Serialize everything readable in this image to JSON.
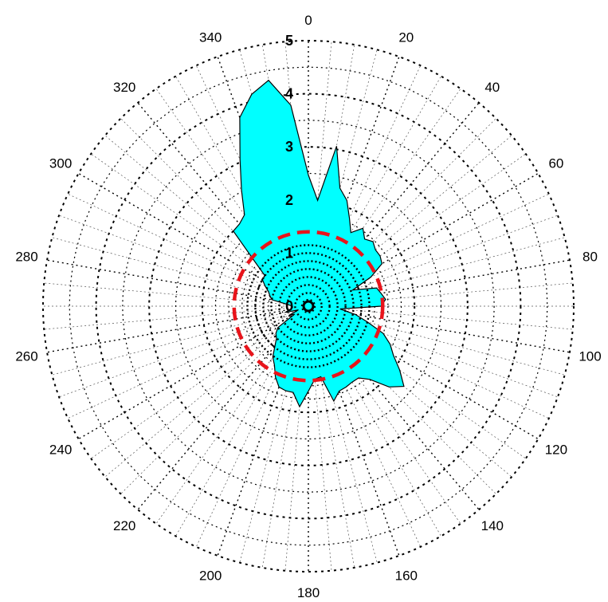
{
  "chart_data": {
    "type": "polar-area",
    "title": "",
    "angular_axis": {
      "unit": "degrees",
      "direction": "clockwise",
      "zero_at": "top",
      "tick_step": 20,
      "tick_labels": [
        "0",
        "20",
        "40",
        "60",
        "80",
        "100",
        "120",
        "140",
        "160",
        "180",
        "200",
        "220",
        "240",
        "260",
        "280",
        "300",
        "320",
        "340"
      ]
    },
    "radial_axis": {
      "range": [
        0,
        5
      ],
      "tick_labels": [
        "0",
        "1",
        "2",
        "3",
        "4",
        "5"
      ]
    },
    "grid": true,
    "series": [
      {
        "kind": "filled-area",
        "color": "#00FFFF",
        "outline": "#000000",
        "angles": [
          0,
          5,
          10,
          15,
          20,
          25,
          30,
          35,
          40,
          45,
          50,
          55,
          60,
          65,
          70,
          75,
          80,
          85,
          90,
          95,
          100,
          105,
          110,
          115,
          120,
          125,
          130,
          135,
          140,
          145,
          150,
          155,
          160,
          165,
          170,
          175,
          180,
          185,
          190,
          195,
          200,
          205,
          210,
          215,
          220,
          225,
          230,
          235,
          240,
          245,
          250,
          255,
          260,
          265,
          270,
          275,
          280,
          285,
          290,
          295,
          300,
          305,
          310,
          315,
          320,
          325,
          330,
          335,
          340,
          345,
          350,
          355
        ],
        "radii": [
          2.47,
          2.0,
          3.06,
          2.3,
          2.12,
          1.83,
          1.6,
          1.79,
          1.65,
          1.72,
          1.65,
          1.65,
          1.6,
          1.3,
          0.89,
          1.33,
          1.39,
          1.46,
          1.37,
          0.6,
          0.9,
          1.15,
          1.5,
          1.7,
          1.85,
          2.1,
          2.35,
          2.15,
          1.8,
          1.65,
          1.65,
          1.68,
          1.7,
          1.85,
          1.35,
          1.38,
          1.6,
          1.9,
          1.65,
          1.65,
          1.62,
          1.47,
          1.28,
          1.17,
          0.98,
          0.85,
          0.8,
          0.7,
          0.3,
          0.4,
          0.2,
          0.45,
          0.35,
          0.3,
          0.3,
          0.4,
          0.7,
          0.75,
          0.8,
          0.9,
          1.0,
          1.0,
          1.33,
          2.0,
          2.02,
          2.1,
          2.52,
          3.05,
          3.78,
          4.13,
          4.32,
          3.8
        ]
      },
      {
        "kind": "circle",
        "color": "#E8141B",
        "style": "dashed",
        "radius": 1.4
      }
    ]
  }
}
